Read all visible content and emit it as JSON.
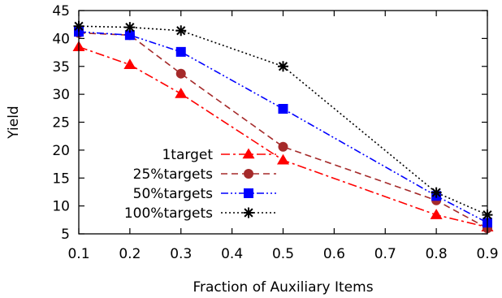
{
  "chart_data": {
    "type": "line",
    "xlabel": "Fraction of Auxiliary Items",
    "ylabel": "Yield",
    "xlim": [
      0.1,
      0.9
    ],
    "ylim": [
      5,
      45
    ],
    "xticks": [
      0.1,
      0.2,
      0.3,
      0.4,
      0.5,
      0.6,
      0.7,
      0.8,
      0.9
    ],
    "yticks": [
      5,
      10,
      15,
      20,
      25,
      30,
      35,
      40,
      45
    ],
    "x": [
      0.1,
      0.2,
      0.3,
      0.5,
      0.8,
      0.9
    ],
    "legend_position": "center-left",
    "grid": false,
    "series": [
      {
        "name": "1target",
        "color": "#ff0000",
        "marker": "triangle",
        "dash": "dashdot",
        "values": [
          38.5,
          35.3,
          30.1,
          18.2,
          8.4,
          6.2
        ]
      },
      {
        "name": "25%targets",
        "color": "#a52a2a",
        "marker": "circle",
        "dash": "dashed",
        "values": [
          41.0,
          40.6,
          33.7,
          20.6,
          11.0,
          6.0
        ]
      },
      {
        "name": "50%targets",
        "color": "#0000ff",
        "marker": "square",
        "dash": "dashdotdot",
        "values": [
          41.2,
          40.6,
          37.6,
          27.4,
          11.8,
          7.0
        ]
      },
      {
        "name": "100%targets",
        "color": "#000000",
        "marker": "star",
        "dash": "dotted",
        "values": [
          42.2,
          42.0,
          41.4,
          35.0,
          12.4,
          8.4
        ]
      }
    ]
  }
}
